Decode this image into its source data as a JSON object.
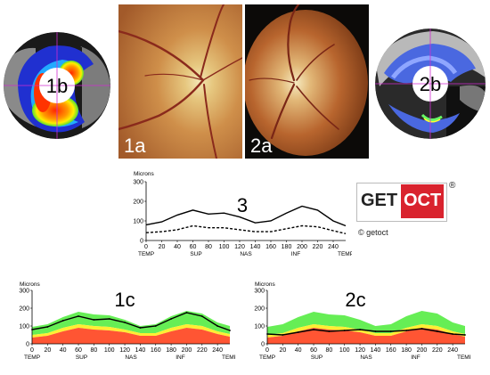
{
  "panels": {
    "map_1b": {
      "label": "1b"
    },
    "map_2b": {
      "label": "2b"
    },
    "fundus_1a": {
      "label": "1a"
    },
    "fundus_2a": {
      "label": "2a"
    }
  },
  "logo": {
    "text_left": "GET",
    "text_right": "OCT",
    "registered": "®",
    "copyright": "© getoct",
    "color_red": "#d9232e"
  },
  "chart_data": [
    {
      "type": "line",
      "label": "3",
      "ylabel": "Microns",
      "ylim": [
        0,
        300
      ],
      "yticks": [
        0,
        100,
        200,
        300
      ],
      "x": [
        0,
        20,
        40,
        60,
        80,
        100,
        120,
        140,
        160,
        180,
        200,
        220,
        240,
        256
      ],
      "xlim": [
        0,
        256
      ],
      "region_labels": [
        "TEMP",
        "SUP",
        "NAS",
        "INF",
        "TEMP"
      ],
      "region_positions": [
        0,
        64,
        128,
        192,
        256
      ],
      "series": [
        {
          "style": "solid",
          "values": [
            80,
            95,
            130,
            155,
            135,
            140,
            120,
            90,
            100,
            140,
            175,
            155,
            100,
            75
          ]
        },
        {
          "style": "dashed",
          "values": [
            40,
            45,
            55,
            75,
            65,
            65,
            55,
            45,
            45,
            60,
            75,
            70,
            50,
            35
          ]
        }
      ]
    },
    {
      "type": "area",
      "label": "1c",
      "ylabel": "Microns",
      "ylim": [
        0,
        300
      ],
      "yticks": [
        0,
        100,
        200,
        300
      ],
      "x": [
        0,
        20,
        40,
        60,
        80,
        100,
        120,
        140,
        160,
        180,
        200,
        220,
        240,
        256
      ],
      "xlim": [
        0,
        256
      ],
      "region_labels": [
        "TEMP",
        "SUP",
        "NAS",
        "INF",
        "TEMP"
      ],
      "region_positions": [
        0,
        64,
        128,
        192,
        256
      ],
      "bands": {
        "red_top": [
          35,
          45,
          70,
          90,
          80,
          75,
          65,
          45,
          45,
          70,
          90,
          80,
          55,
          40
        ],
        "yellow_top": [
          50,
          60,
          90,
          110,
          100,
          95,
          80,
          60,
          60,
          90,
          110,
          100,
          70,
          55
        ],
        "green_top": [
          95,
          110,
          150,
          180,
          165,
          160,
          135,
          100,
          110,
          155,
          185,
          170,
          120,
          100
        ]
      },
      "series": [
        {
          "style": "solid",
          "values": [
            80,
            95,
            130,
            155,
            135,
            140,
            120,
            90,
            100,
            140,
            175,
            155,
            100,
            75
          ]
        }
      ]
    },
    {
      "type": "area",
      "label": "2c",
      "ylabel": "Microns",
      "ylim": [
        0,
        300
      ],
      "yticks": [
        0,
        100,
        200,
        300
      ],
      "x": [
        0,
        20,
        40,
        60,
        80,
        100,
        120,
        140,
        160,
        180,
        200,
        220,
        240,
        256
      ],
      "xlim": [
        0,
        256
      ],
      "region_labels": [
        "TEMP",
        "SUP",
        "NAS",
        "INF",
        "TEMP"
      ],
      "region_positions": [
        0,
        64,
        128,
        192,
        256
      ],
      "bands": {
        "red_top": [
          35,
          45,
          70,
          90,
          80,
          75,
          65,
          45,
          45,
          70,
          90,
          80,
          55,
          40
        ],
        "yellow_top": [
          50,
          60,
          90,
          110,
          100,
          95,
          80,
          60,
          60,
          90,
          110,
          100,
          70,
          55
        ],
        "green_top": [
          95,
          110,
          150,
          180,
          165,
          160,
          135,
          100,
          110,
          155,
          185,
          170,
          120,
          100
        ]
      },
      "series": [
        {
          "style": "solid",
          "values": [
            55,
            50,
            65,
            80,
            70,
            75,
            80,
            70,
            70,
            75,
            85,
            70,
            55,
            50
          ]
        }
      ]
    }
  ]
}
